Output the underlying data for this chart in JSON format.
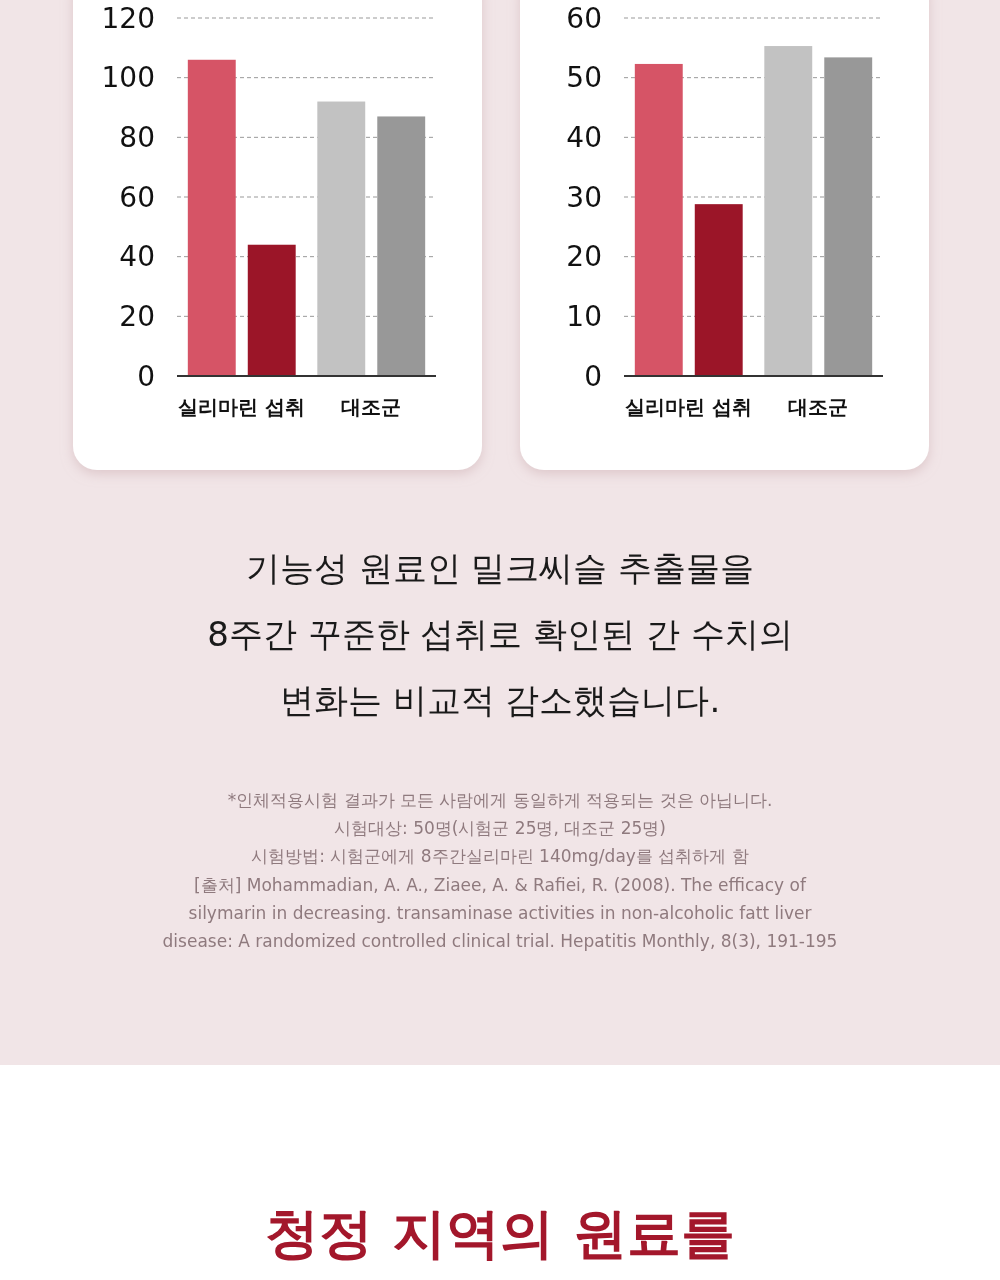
{
  "chart_data": [
    {
      "type": "bar",
      "categories": [
        "실리마린 섭취",
        "대조군"
      ],
      "ylim": [
        0,
        120
      ],
      "yticks": [
        0,
        20,
        40,
        60,
        80,
        100,
        120
      ],
      "grid": "y",
      "series": [
        {
          "colors": [
            "#d65466",
            "#c2c2c2"
          ],
          "values": [
            106,
            92
          ]
        },
        {
          "colors": [
            "#9b1528",
            "#989898"
          ],
          "values": [
            44,
            87
          ]
        }
      ]
    },
    {
      "type": "bar",
      "categories": [
        "실리마린 섭취",
        "대조군"
      ],
      "ylim": [
        0,
        60
      ],
      "yticks": [
        0,
        10,
        20,
        30,
        40,
        50,
        60
      ],
      "grid": "y",
      "series": [
        {
          "colors": [
            "#d65466",
            "#c2c2c2"
          ],
          "values": [
            52.3,
            55.3
          ]
        },
        {
          "colors": [
            "#9b1528",
            "#989898"
          ],
          "values": [
            28.8,
            53.4
          ]
        }
      ],
      "annotations": [
        "기능성 원료인 밀크씨슬 추출물을",
        "8주간 꾸준한 섭취로 확인된 간 수치의",
        "변화는 비교적 감소했습니다.",
        "*인체적용시험 결과가 모든 사람에게 동일하게 적용되는 것은 아닙니다.",
        "시험대상: 50명(시험군 25명, 대조군 25명)",
        "시험방법: 시험군에게 8주간실리마린 140mg/day를 섭취하게 함",
        "[출처] Mohammadian, A. A., Ziaee, A. & Rafiei, R. (2008). The efficacy of",
        "silymarin in decreasing. transaminase activities in non-alcoholic fatt liver",
        "disease: A randomized controlled clinical trial. Hepatitis Monthly, 8(3), 191-195",
        "청정 지역의 원료를"
      ]
    }
  ]
}
